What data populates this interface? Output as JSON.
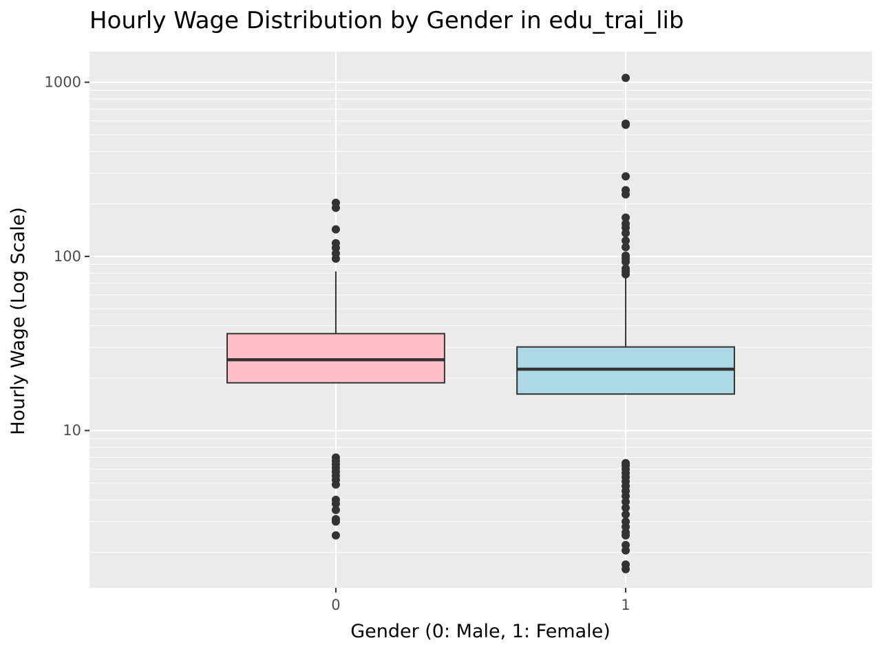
{
  "chart_data": {
    "type": "boxplot",
    "title": "Hourly Wage Distribution by Gender in edu_trai_lib",
    "xlabel": "Gender (0: Male, 1: Female)",
    "ylabel": "Hourly Wage (Log Scale)",
    "y_scale": "log10",
    "ylim": [
      1.25,
      1500
    ],
    "y_ticks": [
      {
        "value": 10,
        "label": "10"
      },
      {
        "value": 100,
        "label": "100"
      },
      {
        "value": 1000,
        "label": "1000"
      }
    ],
    "categories": [
      "0",
      "1"
    ],
    "series": [
      {
        "name": "0",
        "fill": "#ffc0cb",
        "whisker_low": 18.8,
        "q1": 18.8,
        "median": 25.5,
        "q3": 36.0,
        "whisker_high": 82.0,
        "outliers": [
          203,
          190,
          143,
          119,
          112,
          104,
          97,
          7.0,
          6.7,
          6.4,
          6.1,
          5.8,
          5.5,
          5.2,
          4.9,
          4.0,
          3.8,
          3.5,
          3.1,
          3.0,
          2.5
        ]
      },
      {
        "name": "1",
        "fill": "#add8e6",
        "whisker_low": 16.2,
        "q1": 16.2,
        "median": 22.5,
        "q3": 30.2,
        "whisker_high": 76.0,
        "outliers": [
          1060,
          578,
          570,
          288,
          240,
          227,
          167,
          154,
          146,
          136,
          123,
          113,
          101,
          97,
          93,
          85,
          82,
          79,
          6.5,
          6.3,
          6.0,
          5.7,
          5.4,
          5.1,
          4.8,
          4.5,
          4.2,
          3.9,
          3.6,
          3.3,
          3.0,
          2.8,
          2.6,
          2.5,
          2.2,
          2.05,
          1.7,
          1.6
        ]
      }
    ],
    "colors": {
      "panel": "#ebebeb",
      "grid_major": "#ffffff",
      "box_line": "#333333",
      "point": "#333333"
    }
  }
}
